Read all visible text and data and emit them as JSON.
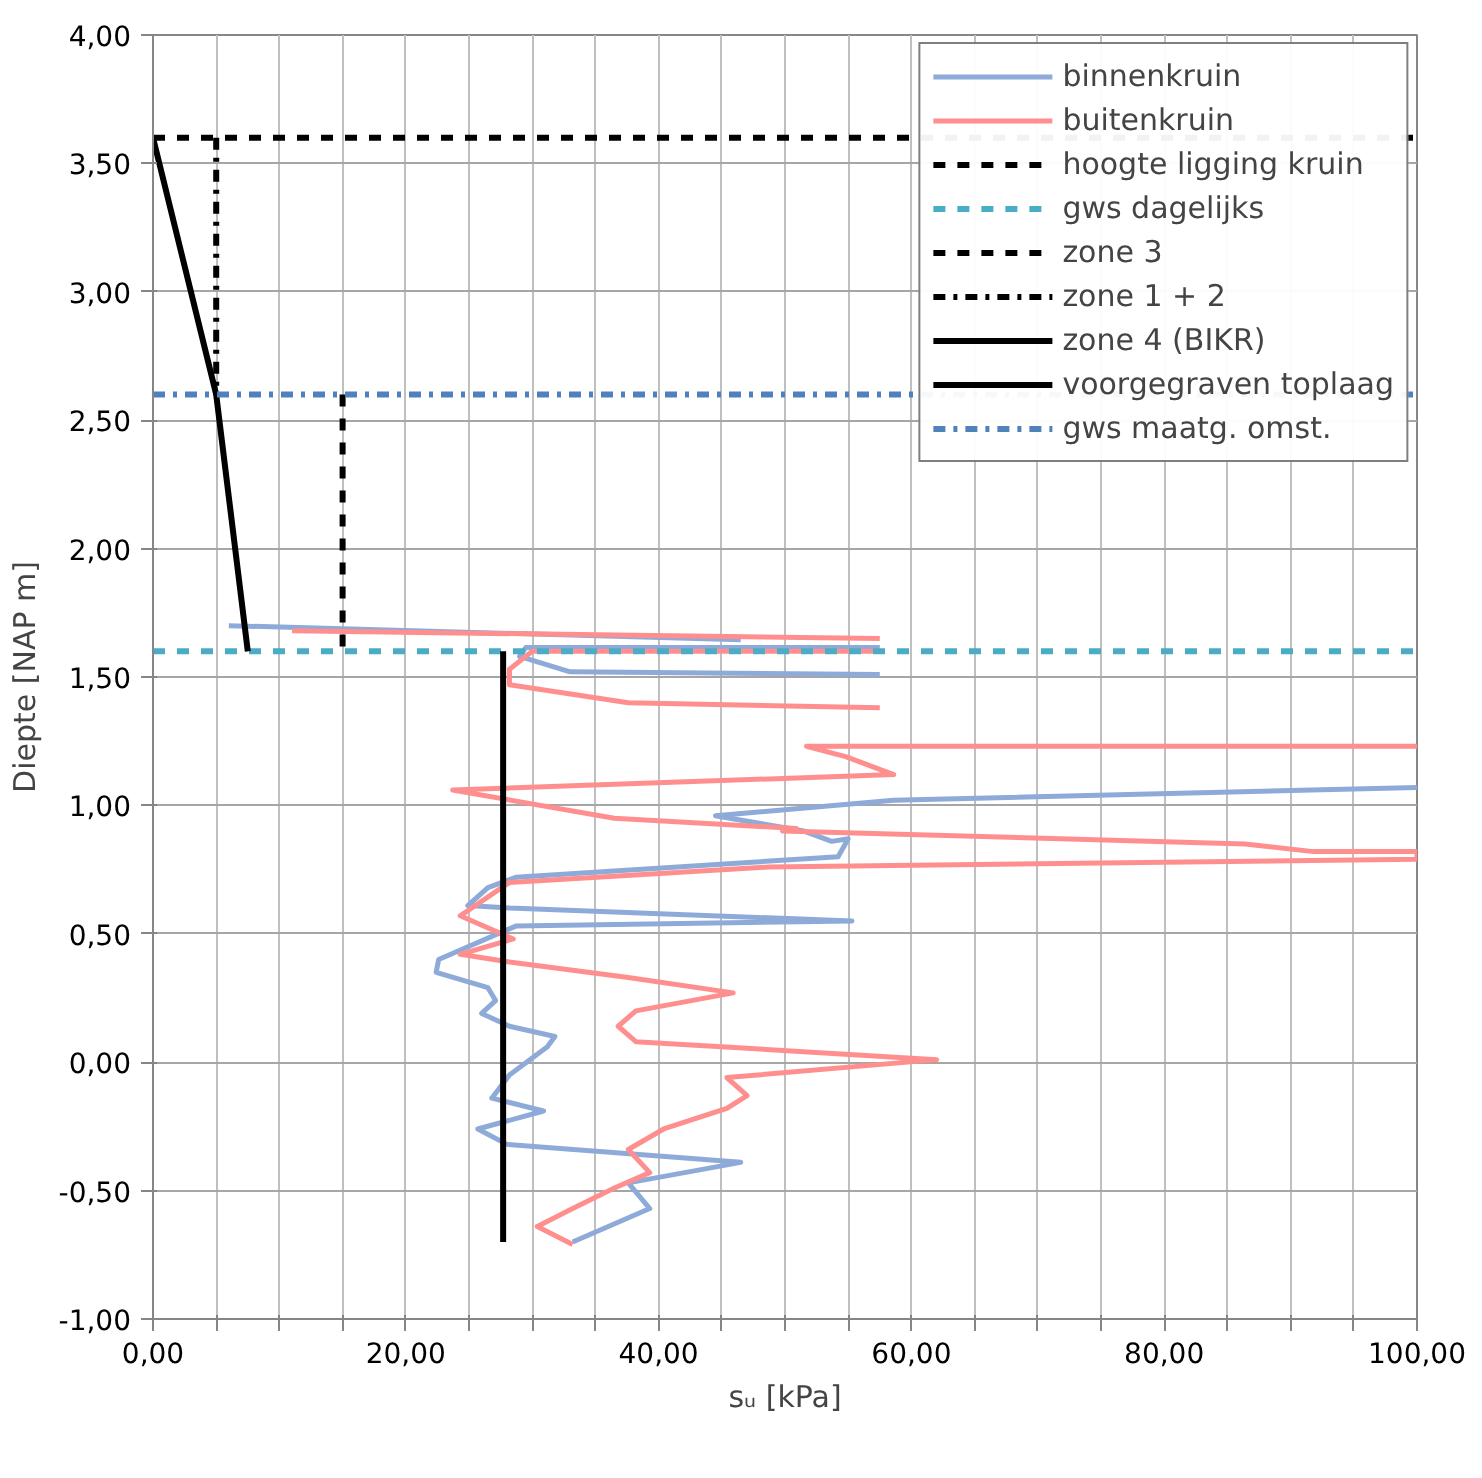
{
  "chart_data": {
    "type": "line",
    "xlabel": "sᵤ [kPa]",
    "ylabel": "Diepte [NAP m]",
    "xlim": [
      0,
      100
    ],
    "ylim": [
      -1,
      4
    ],
    "xticks": [
      {
        "value": 0,
        "label": "0,00"
      },
      {
        "value": 5,
        "label": null
      },
      {
        "value": 10,
        "label": null
      },
      {
        "value": 15,
        "label": null
      },
      {
        "value": 20,
        "label": "20,00"
      },
      {
        "value": 25,
        "label": null
      },
      {
        "value": 30,
        "label": null
      },
      {
        "value": 35,
        "label": null
      },
      {
        "value": 40,
        "label": "40,00"
      },
      {
        "value": 45,
        "label": null
      },
      {
        "value": 50,
        "label": null
      },
      {
        "value": 55,
        "label": null
      },
      {
        "value": 60,
        "label": "60,00"
      },
      {
        "value": 65,
        "label": null
      },
      {
        "value": 70,
        "label": null
      },
      {
        "value": 75,
        "label": null
      },
      {
        "value": 80,
        "label": "80,00"
      },
      {
        "value": 85,
        "label": null
      },
      {
        "value": 90,
        "label": null
      },
      {
        "value": 95,
        "label": null
      },
      {
        "value": 100,
        "label": "100,00"
      }
    ],
    "yticks": [
      {
        "value": -1,
        "label": "-1,00"
      },
      {
        "value": -0.5,
        "label": "-0,50"
      },
      {
        "value": 0,
        "label": "0,00"
      },
      {
        "value": 0.5,
        "label": "0,50"
      },
      {
        "value": 1,
        "label": "1,00"
      },
      {
        "value": 1.5,
        "label": "1,50"
      },
      {
        "value": 2,
        "label": "2,00"
      },
      {
        "value": 2.5,
        "label": "2,50"
      },
      {
        "value": 3,
        "label": "3,00"
      },
      {
        "value": 3.5,
        "label": "3,50"
      },
      {
        "value": 4,
        "label": "4,00"
      }
    ],
    "grid": true,
    "legend": "top right",
    "series": [
      {
        "name": "binnenkruin",
        "color": "#8eaad8",
        "line_style": "solid",
        "x": [
          6,
          46.5,
          null,
          57.5,
          29.5,
          29,
          33,
          57.5,
          null,
          100,
          58.6,
          44.5,
          51.5,
          53.7,
          55,
          54.2,
          28.7,
          26.5,
          24.9,
          28.2,
          55.3,
          28.7,
          22.6,
          22.4,
          26.5,
          27.1,
          26,
          28.2,
          31.8,
          31.2,
          28.2,
          26.8,
          30.9,
          25.7,
          28,
          46.5,
          37.6,
          39.3,
          33.2
        ],
        "values": [
          1.7,
          1.645,
          null,
          1.615,
          1.615,
          1.58,
          1.52,
          1.51,
          null,
          1.07,
          1.02,
          0.96,
          0.9,
          0.86,
          0.87,
          0.8,
          0.72,
          0.68,
          0.61,
          0.6,
          0.55,
          0.53,
          0.4,
          0.35,
          0.29,
          0.24,
          0.19,
          0.14,
          0.1,
          0.06,
          -0.05,
          -0.14,
          -0.19,
          -0.26,
          -0.32,
          -0.39,
          -0.47,
          -0.57,
          -0.7
        ]
      },
      {
        "name": "buitenkruin",
        "color": "#ff8f8f",
        "line_style": "solid",
        "x": [
          11,
          57.5,
          null,
          57.5,
          30,
          28.2,
          28.2,
          37.6,
          57.5,
          null,
          100,
          51.7,
          54.8,
          58.6,
          23.7,
          36.5,
          50.9,
          49.8,
          86.4,
          91.8,
          100,
          100,
          48.7,
          28.2,
          24.3,
          28.5,
          24.3,
          28.2,
          37.6,
          45.9,
          38.2,
          36.8,
          38.2,
          62,
          45.4,
          47,
          45.4,
          40.4,
          37.6,
          39.3,
          36.5,
          33.2,
          30.4,
          33.2
        ],
        "values": [
          1.68,
          1.65,
          null,
          1.6,
          1.6,
          1.53,
          1.47,
          1.4,
          1.38,
          null,
          1.23,
          1.23,
          1.19,
          1.12,
          1.06,
          0.95,
          0.91,
          0.9,
          0.85,
          0.82,
          0.82,
          0.79,
          0.76,
          0.7,
          0.57,
          0.48,
          0.42,
          0.39,
          0.33,
          0.27,
          0.2,
          0.14,
          0.08,
          0.01,
          -0.06,
          -0.13,
          -0.18,
          -0.26,
          -0.34,
          -0.43,
          -0.49,
          -0.57,
          -0.64,
          -0.71
        ]
      },
      {
        "name": "hoogte ligging kruin",
        "color": "#000000",
        "line_style": "dashed",
        "x": [
          0,
          100
        ],
        "values": [
          3.6,
          3.6
        ]
      },
      {
        "name": "gws dagelijks",
        "color": "#4bacc6",
        "line_style": "dashed",
        "x": [
          0,
          100
        ],
        "values": [
          1.6,
          1.6
        ]
      },
      {
        "name": "zone 3",
        "color": "#000000",
        "line_style": "dashed",
        "x": [
          15,
          15
        ],
        "values": [
          2.6,
          1.6
        ]
      },
      {
        "name": "zone 1 + 2",
        "color": "#000000",
        "line_style": "dashdot",
        "x": [
          5,
          5
        ],
        "values": [
          3.6,
          2.6
        ]
      },
      {
        "name": "zone 4 (BIKR)",
        "color": "#000000",
        "line_style": "solid",
        "x": [
          0,
          5,
          7.5
        ],
        "values": [
          3.6,
          2.6,
          1.6
        ]
      },
      {
        "name": "voorgegraven toplaag",
        "color": "#000000",
        "line_style": "solid",
        "x": [
          27.7,
          27.7
        ],
        "values": [
          1.6,
          -0.7
        ]
      },
      {
        "name": "gws maatg. omst.",
        "color": "#4f81bd",
        "line_style": "dashdot",
        "x": [
          0,
          100
        ],
        "values": [
          2.6,
          2.6
        ]
      }
    ]
  }
}
